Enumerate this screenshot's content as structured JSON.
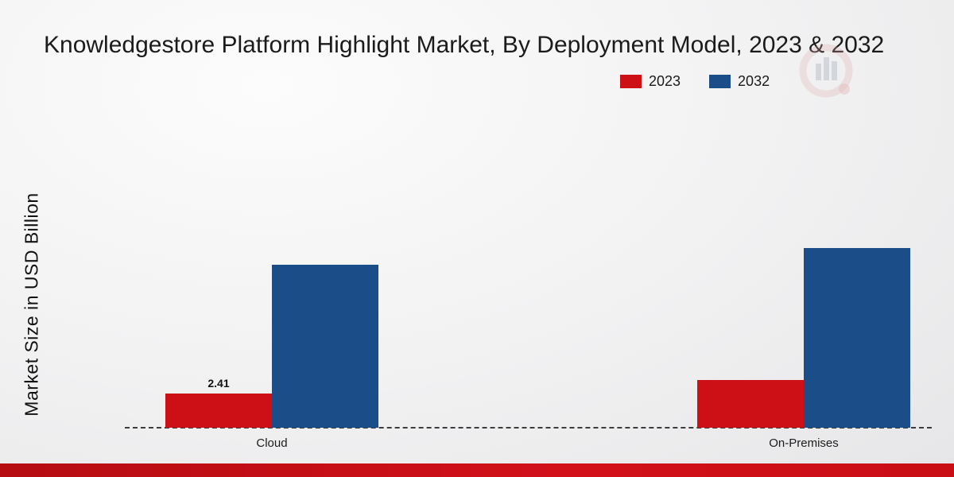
{
  "page": {
    "background_color": "#ececec",
    "footer_accent_color": "#c50d13"
  },
  "icons": {
    "watermark": "bar-chart-logo-watermark"
  },
  "chart_data": {
    "type": "bar",
    "title": "Knowledgestore Platform Highlight Market, By Deployment Model, 2023 & 2032",
    "ylabel": "Market Size in USD Billion",
    "xlabel": "",
    "categories": [
      "Cloud",
      "On-Premises"
    ],
    "series": [
      {
        "name": "2023",
        "color": "#cc1016",
        "values": [
          2.41,
          3.35
        ],
        "labels": [
          "2.41",
          ""
        ]
      },
      {
        "name": "2032",
        "color": "#1b4e89",
        "values": [
          11.5,
          12.65
        ],
        "labels": [
          "",
          ""
        ]
      }
    ],
    "ylim": [
      0,
      14
    ],
    "grid": false,
    "legend_position": "top-right",
    "baseline_style": "dashed",
    "value_label_shown": "2.41"
  }
}
